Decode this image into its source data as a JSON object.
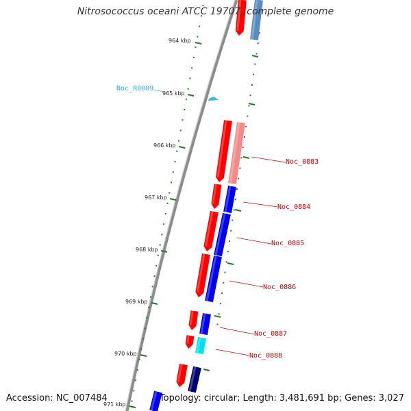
{
  "title": "Nitrosococcus oceani ATCC 19707, complete genome",
  "footer": {
    "accession": "Accession: NC_007484",
    "summary": "Topology: circular; Length: 3,481,691 bp; Genes: 3,027"
  },
  "colors": {
    "forward_cds": "#ff0000",
    "forward_cds_light": "#f28a8a",
    "cog_blue": "#0000ee",
    "cog_light_blue": "#5b8cc0",
    "cog_cyan": "#00e0ee",
    "cog_navy": "#000070",
    "rna": "#3cb6e8",
    "label_red": "#cc0000",
    "label_cyan": "#2aaee0",
    "tick_green": "#1f7a1f",
    "backbone": "#8c8c8c"
  },
  "scale_labels": [
    "964 kbp",
    "965 kbp",
    "966 kbp",
    "967 kbp",
    "968 kbp",
    "969 kbp",
    "970 kbp",
    "971 kbp"
  ],
  "gene_labels": [
    {
      "text": "Noc_R0009",
      "color": "cyan"
    },
    {
      "text": "Noc_0883",
      "color": "red"
    },
    {
      "text": "Noc_0884",
      "color": "red"
    },
    {
      "text": "Noc_0885",
      "color": "red"
    },
    {
      "text": "Noc_0886",
      "color": "red"
    },
    {
      "text": "Noc_0887",
      "color": "red"
    },
    {
      "text": "Noc_0888",
      "color": "red"
    }
  ]
}
